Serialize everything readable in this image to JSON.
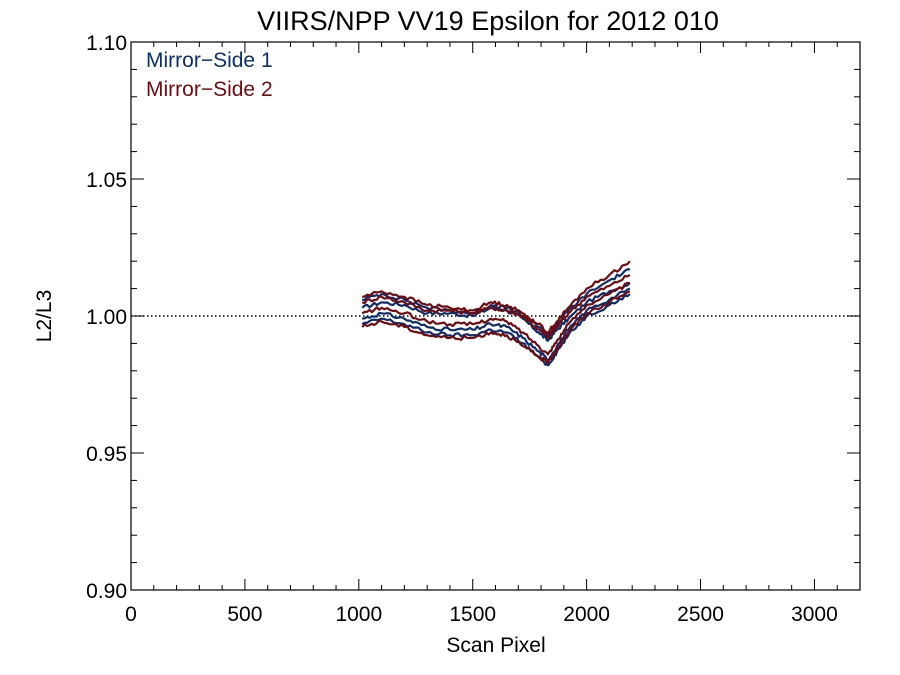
{
  "chart_data": {
    "type": "line",
    "title": "VIIRS/NPP VV19 Epsilon for 2012 010",
    "xlabel": "Scan Pixel",
    "ylabel": "L2/L3",
    "xlim": [
      0,
      3200
    ],
    "ylim": [
      0.9,
      1.1
    ],
    "xticks": [
      0,
      500,
      1000,
      1500,
      2000,
      2500,
      3000
    ],
    "xtick_labels": [
      "0",
      "500",
      "1000",
      "1500",
      "2000",
      "2500",
      "3000"
    ],
    "yticks": [
      0.9,
      0.95,
      1.0,
      1.05,
      1.1
    ],
    "ytick_labels": [
      "0.90",
      "0.95",
      "1.00",
      "1.05",
      "1.10"
    ],
    "reference_line": {
      "y": 1.0,
      "style": "dotted",
      "color": "#000000"
    },
    "legend": {
      "placement": "top-left",
      "entries": [
        {
          "label": "Mirror−Side 1",
          "color": "#0b2f6e"
        },
        {
          "label": "Mirror−Side 2",
          "color": "#740a0e"
        }
      ]
    },
    "grid": false,
    "series": [
      {
        "name": "Mirror−Side 1",
        "color": "#0b2f6e",
        "lines": [
          {
            "x": [
              1015,
              1100,
              1200,
              1300,
              1400,
              1500,
              1580,
              1650,
              1720,
              1790,
              1830,
              1870,
              1920,
              2000,
              2100,
              2190
            ],
            "y": [
              1.003,
              1.005,
              1.004,
              1.001,
              1.001,
              1.0,
              1.003,
              1.002,
              0.999,
              0.994,
              0.991,
              0.995,
              0.999,
              1.005,
              1.009,
              1.012
            ]
          },
          {
            "x": [
              1015,
              1100,
              1200,
              1300,
              1400,
              1500,
              1580,
              1650,
              1720,
              1790,
              1830,
              1870,
              1920,
              2000,
              2100,
              2190
            ],
            "y": [
              1.006,
              1.008,
              1.006,
              1.003,
              1.002,
              1.001,
              1.004,
              1.003,
              1.0,
              0.996,
              0.993,
              0.997,
              1.002,
              1.008,
              1.013,
              1.017
            ]
          },
          {
            "x": [
              1015,
              1100,
              1200,
              1300,
              1400,
              1500,
              1580,
              1650,
              1720,
              1790,
              1830,
              1870,
              1920,
              2000,
              2100,
              2190
            ],
            "y": [
              0.999,
              1.001,
              0.999,
              0.996,
              0.995,
              0.995,
              0.997,
              0.996,
              0.992,
              0.987,
              0.984,
              0.989,
              0.995,
              1.002,
              1.006,
              1.01
            ]
          },
          {
            "x": [
              1015,
              1100,
              1200,
              1300,
              1400,
              1500,
              1580,
              1650,
              1720,
              1790,
              1830,
              1870,
              1920,
              2000,
              2100,
              2190
            ],
            "y": [
              0.997,
              0.999,
              0.997,
              0.994,
              0.993,
              0.993,
              0.995,
              0.994,
              0.99,
              0.985,
              0.982,
              0.987,
              0.993,
              1.0,
              1.004,
              1.008
            ]
          }
        ]
      },
      {
        "name": "Mirror−Side 2",
        "color": "#740a0e",
        "lines": [
          {
            "x": [
              1015,
              1100,
              1200,
              1300,
              1400,
              1500,
              1580,
              1650,
              1720,
              1790,
              1830,
              1870,
              1920,
              2000,
              2100,
              2190
            ],
            "y": [
              1.005,
              1.007,
              1.005,
              1.002,
              1.002,
              1.001,
              1.003,
              1.002,
              1.0,
              0.995,
              0.992,
              0.996,
              1.001,
              1.007,
              1.011,
              1.015
            ]
          },
          {
            "x": [
              1015,
              1100,
              1200,
              1300,
              1400,
              1500,
              1580,
              1650,
              1720,
              1790,
              1830,
              1870,
              1920,
              2000,
              2100,
              2190
            ],
            "y": [
              1.007,
              1.009,
              1.007,
              1.004,
              1.003,
              1.002,
              1.005,
              1.004,
              1.001,
              0.997,
              0.994,
              0.998,
              1.003,
              1.01,
              1.015,
              1.02
            ]
          },
          {
            "x": [
              1015,
              1100,
              1200,
              1300,
              1400,
              1500,
              1580,
              1650,
              1720,
              1790,
              1830,
              1870,
              1920,
              2000,
              2100,
              2190
            ],
            "y": [
              1.001,
              1.003,
              1.001,
              0.998,
              0.997,
              0.997,
              0.999,
              0.998,
              0.994,
              0.989,
              0.986,
              0.991,
              0.997,
              1.004,
              1.008,
              1.012
            ]
          },
          {
            "x": [
              1015,
              1100,
              1200,
              1300,
              1400,
              1500,
              1580,
              1650,
              1720,
              1790,
              1830,
              1870,
              1920,
              2000,
              2100,
              2190
            ],
            "y": [
              0.996,
              0.998,
              0.996,
              0.993,
              0.992,
              0.992,
              0.994,
              0.993,
              0.989,
              0.985,
              0.983,
              0.988,
              0.994,
              1.001,
              1.005,
              1.009
            ]
          }
        ]
      }
    ]
  }
}
